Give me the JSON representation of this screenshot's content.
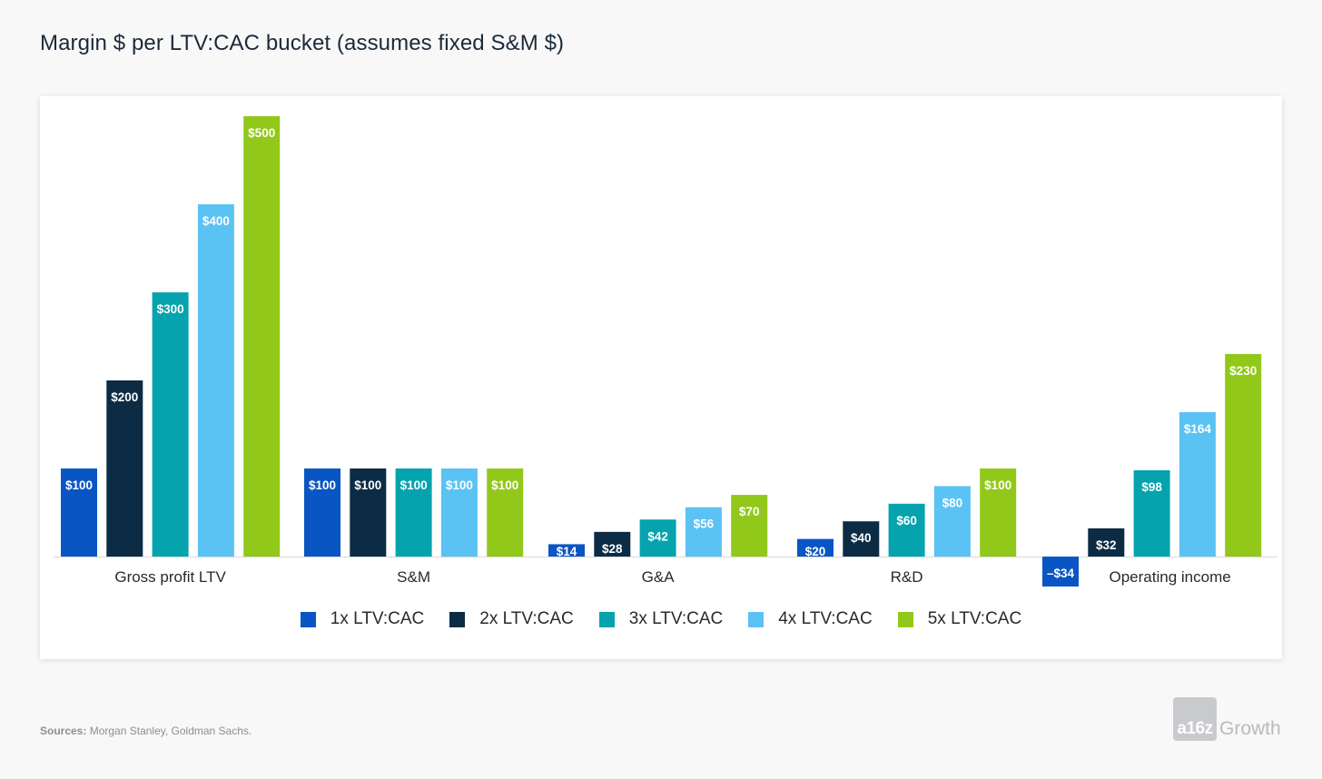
{
  "header": {
    "title": "Margin $ per LTV:CAC bucket (assumes fixed S&M $)"
  },
  "footer": {
    "sources_label": "Sources:",
    "sources_text": "Morgan Stanley, Goldman Sachs.",
    "logo_mark": "a16z",
    "logo_text": "Growth"
  },
  "chart_data": {
    "type": "bar",
    "title": "Margin $ per LTV:CAC bucket (assumes fixed S&M $)",
    "categories": [
      "Gross profit LTV",
      "S&M",
      "G&A",
      "R&D",
      "Operating income"
    ],
    "series": [
      {
        "name": "1x LTV:CAC",
        "color": "#0a55c4",
        "values": [
          100,
          100,
          14,
          20,
          -34
        ],
        "labels": [
          "$100",
          "$100",
          "$14",
          "$20",
          "–$34"
        ]
      },
      {
        "name": "2x LTV:CAC",
        "color": "#0c2b44",
        "values": [
          200,
          100,
          28,
          40,
          32
        ],
        "labels": [
          "$200",
          "$100",
          "$28",
          "$40",
          "$32"
        ]
      },
      {
        "name": "3x LTV:CAC",
        "color": "#05a3ad",
        "values": [
          300,
          100,
          42,
          60,
          98
        ],
        "labels": [
          "$300",
          "$100",
          "$42",
          "$60",
          "$98"
        ]
      },
      {
        "name": "4x LTV:CAC",
        "color": "#5bc2f4",
        "values": [
          400,
          100,
          56,
          80,
          164
        ],
        "labels": [
          "$400",
          "$100",
          "$56",
          "$80",
          "$164"
        ]
      },
      {
        "name": "5x LTV:CAC",
        "color": "#92c819",
        "values": [
          500,
          100,
          70,
          100,
          230
        ],
        "labels": [
          "$500",
          "$100",
          "$70",
          "$100",
          "$230"
        ]
      }
    ],
    "ylim": [
      -34,
      500
    ],
    "grid": false,
    "legend_position": "bottom"
  }
}
